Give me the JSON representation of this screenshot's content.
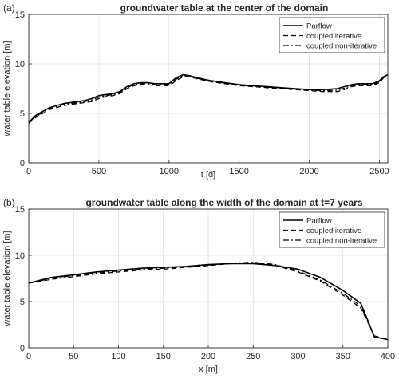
{
  "chart_data": [
    {
      "type": "line",
      "panel_label": "(a)",
      "title": "groundwater table at the center of the domain",
      "xlabel": "t [d]",
      "ylabel": "water table elevation [m]",
      "xlim": [
        0,
        2560
      ],
      "ylim": [
        0,
        15
      ],
      "xticks": [
        "0",
        "500",
        "1000",
        "1500",
        "2000",
        "2500"
      ],
      "yticks": [
        "0",
        "5",
        "10",
        "15"
      ],
      "grid": true,
      "legend_position": "top-right",
      "series": [
        {
          "name": "Parflow",
          "style": "solid",
          "color": "#000000",
          "x": [
            0,
            50,
            100,
            150,
            200,
            250,
            300,
            350,
            400,
            450,
            500,
            550,
            600,
            650,
            700,
            750,
            800,
            850,
            900,
            950,
            1000,
            1050,
            1100,
            1150,
            1200,
            1300,
            1400,
            1500,
            1600,
            1700,
            1800,
            1900,
            2000,
            2100,
            2200,
            2250,
            2300,
            2350,
            2400,
            2450,
            2500,
            2530,
            2560
          ],
          "y": [
            4.1,
            4.8,
            5.2,
            5.6,
            5.8,
            6.0,
            6.1,
            6.2,
            6.3,
            6.5,
            6.8,
            6.9,
            7.0,
            7.2,
            7.7,
            8.0,
            8.1,
            8.1,
            8.0,
            8.0,
            8.0,
            8.6,
            8.9,
            8.8,
            8.6,
            8.3,
            8.1,
            7.9,
            7.8,
            7.7,
            7.6,
            7.5,
            7.4,
            7.4,
            7.5,
            7.7,
            7.9,
            8.0,
            8.0,
            8.0,
            8.3,
            8.7,
            8.9
          ]
        },
        {
          "name": "coupled iterative",
          "style": "dashed",
          "color": "#000000",
          "x": [
            0,
            50,
            100,
            150,
            200,
            250,
            300,
            350,
            400,
            450,
            500,
            550,
            600,
            650,
            700,
            750,
            800,
            850,
            900,
            950,
            1000,
            1050,
            1100,
            1150,
            1200,
            1300,
            1400,
            1500,
            1600,
            1700,
            1800,
            1900,
            2000,
            2100,
            2200,
            2250,
            2300,
            2350,
            2400,
            2450,
            2500,
            2530,
            2560
          ],
          "y": [
            4.0,
            4.6,
            5.0,
            5.4,
            5.6,
            5.8,
            5.9,
            6.0,
            6.1,
            6.2,
            6.5,
            6.7,
            6.8,
            7.0,
            7.5,
            7.8,
            7.9,
            7.9,
            7.8,
            7.8,
            7.8,
            8.3,
            8.7,
            8.7,
            8.5,
            8.2,
            8.0,
            7.8,
            7.7,
            7.6,
            7.5,
            7.4,
            7.3,
            7.2,
            7.2,
            7.4,
            7.7,
            7.8,
            7.8,
            7.8,
            8.1,
            8.6,
            8.9
          ]
        },
        {
          "name": "coupled non-iterative",
          "style": "dashdot",
          "color": "#000000",
          "x": [
            0,
            50,
            100,
            150,
            200,
            250,
            300,
            350,
            400,
            450,
            500,
            550,
            600,
            650,
            700,
            750,
            800,
            850,
            900,
            950,
            1000,
            1050,
            1100,
            1150,
            1200,
            1300,
            1400,
            1500,
            1600,
            1700,
            1800,
            1900,
            2000,
            2100,
            2200,
            2250,
            2300,
            2350,
            2400,
            2450,
            2500,
            2530,
            2560
          ],
          "y": [
            4.05,
            4.7,
            5.1,
            5.5,
            5.7,
            5.9,
            6.0,
            6.1,
            6.2,
            6.35,
            6.65,
            6.8,
            6.9,
            7.1,
            7.6,
            7.9,
            8.0,
            8.0,
            7.9,
            7.9,
            7.9,
            8.45,
            8.8,
            8.75,
            8.55,
            8.25,
            8.05,
            7.85,
            7.75,
            7.65,
            7.55,
            7.45,
            7.35,
            7.3,
            7.35,
            7.55,
            7.8,
            7.9,
            7.9,
            7.9,
            8.2,
            8.65,
            8.9
          ]
        }
      ]
    },
    {
      "type": "line",
      "panel_label": "(b)",
      "title": "groundwater table along the width of the domain at t=7 years",
      "xlabel": "x [m]",
      "ylabel": "water table elevation [m]",
      "xlim": [
        0,
        400
      ],
      "ylim": [
        0,
        15
      ],
      "xticks": [
        "0",
        "50",
        "100",
        "150",
        "200",
        "250",
        "300",
        "350",
        "400"
      ],
      "yticks": [
        "0",
        "5",
        "10",
        "15"
      ],
      "grid": true,
      "legend_position": "top-right",
      "series": [
        {
          "name": "Parflow",
          "style": "solid",
          "color": "#000000",
          "x": [
            0,
            25,
            50,
            75,
            100,
            125,
            150,
            175,
            200,
            225,
            250,
            275,
            300,
            325,
            350,
            370,
            385,
            400
          ],
          "y": [
            7.0,
            7.6,
            7.9,
            8.2,
            8.4,
            8.6,
            8.7,
            8.8,
            9.0,
            9.1,
            9.1,
            8.9,
            8.5,
            7.6,
            6.2,
            4.8,
            1.2,
            0.9
          ]
        },
        {
          "name": "coupled iterative",
          "style": "dashed",
          "color": "#000000",
          "x": [
            0,
            25,
            50,
            75,
            100,
            125,
            150,
            175,
            200,
            225,
            250,
            275,
            300,
            325,
            350,
            370,
            385,
            400
          ],
          "y": [
            7.0,
            7.4,
            7.7,
            8.0,
            8.2,
            8.4,
            8.5,
            8.7,
            8.9,
            9.1,
            9.2,
            8.9,
            8.2,
            7.2,
            5.7,
            4.3,
            1.3,
            0.9
          ]
        },
        {
          "name": "coupled non-iterative",
          "style": "dashdot",
          "color": "#000000",
          "x": [
            0,
            25,
            50,
            75,
            100,
            125,
            150,
            175,
            200,
            225,
            250,
            275,
            300,
            325,
            350,
            370,
            385,
            400
          ],
          "y": [
            7.0,
            7.5,
            7.8,
            8.1,
            8.3,
            8.5,
            8.6,
            8.75,
            8.95,
            9.15,
            9.25,
            9.0,
            8.3,
            7.3,
            5.9,
            4.5,
            1.3,
            0.9
          ]
        }
      ]
    }
  ]
}
